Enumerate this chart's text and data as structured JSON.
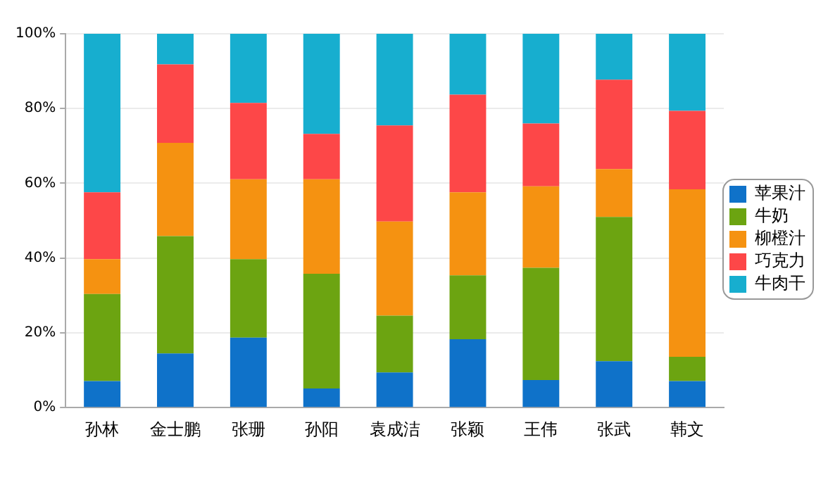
{
  "chart_data": {
    "type": "bar",
    "stacked": true,
    "categories": [
      "孙林",
      "金士鹏",
      "张珊",
      "孙阳",
      "袁成洁",
      "张颖",
      "王伟",
      "张武",
      "韩文"
    ],
    "series": [
      {
        "name": "苹果汁",
        "color": "#0f72c9",
        "values": [
          7.1,
          14.5,
          18.7,
          5.1,
          9.4,
          18.3,
          7.4,
          12.4,
          7.1
        ]
      },
      {
        "name": "牛奶",
        "color": "#6ca411",
        "values": [
          23.3,
          31.4,
          21.0,
          30.7,
          15.2,
          17.1,
          30.0,
          38.6,
          6.5
        ]
      },
      {
        "name": "柳橙汁",
        "color": "#f59211",
        "values": [
          9.3,
          24.9,
          21.4,
          25.3,
          25.2,
          22.2,
          21.8,
          12.8,
          44.8
        ]
      },
      {
        "name": "巧克力",
        "color": "#fd4748",
        "values": [
          17.9,
          21.0,
          20.4,
          12.1,
          25.7,
          26.1,
          16.8,
          23.9,
          21.0
        ]
      },
      {
        "name": "牛肉干",
        "color": "#17aecf",
        "values": [
          42.4,
          8.2,
          18.5,
          26.8,
          24.5,
          16.3,
          24.0,
          12.3,
          20.6
        ]
      }
    ],
    "ylim": [
      0,
      100
    ],
    "yticks": [
      {
        "value": 0,
        "label": "0%"
      },
      {
        "value": 20,
        "label": "20%"
      },
      {
        "value": 40,
        "label": "40%"
      },
      {
        "value": 60,
        "label": "60%"
      },
      {
        "value": 80,
        "label": "80%"
      },
      {
        "value": 100,
        "label": "100%"
      }
    ],
    "grid": "y",
    "legend": "right"
  }
}
